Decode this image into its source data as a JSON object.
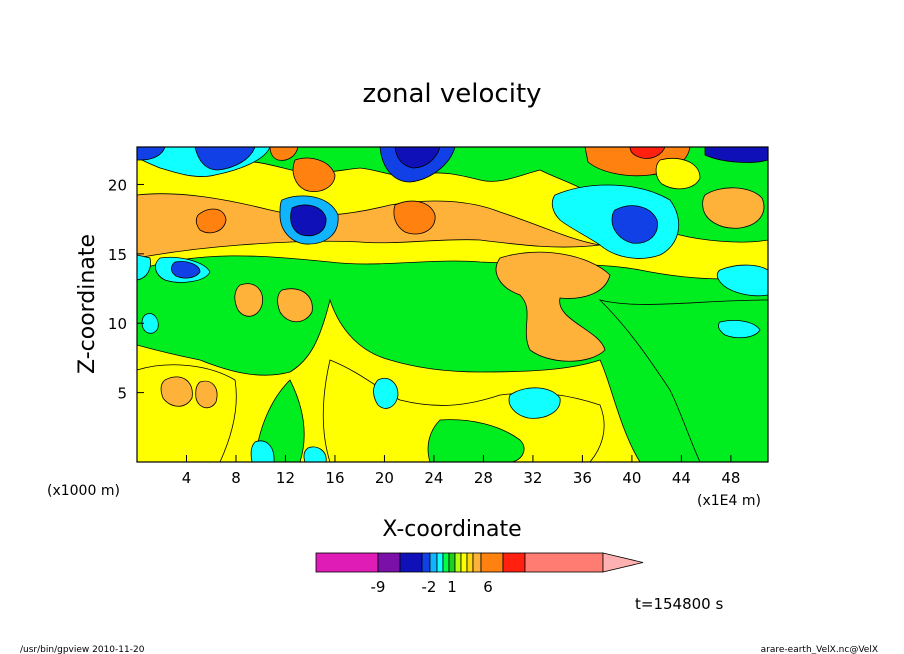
{
  "chart_data": {
    "type": "heatmap",
    "title": "zonal velocity",
    "xlabel": "X-coordinate",
    "ylabel": "Z-coordinate",
    "x_units_left": "(x1000 m)",
    "x_units_right": "(x1E4 m)",
    "xlim": [
      0,
      51
    ],
    "ylim": [
      0,
      22.7
    ],
    "x_ticks": [
      4,
      8,
      12,
      16,
      20,
      24,
      28,
      32,
      36,
      40,
      44,
      48
    ],
    "y_ticks": [
      5,
      10,
      15,
      20
    ],
    "colorbar": {
      "tick_labels": [
        "-9",
        "-2",
        "1",
        "6"
      ],
      "colors": [
        "#e01cb6",
        "#7a10a8",
        "#1010b8",
        "#1040e6",
        "#10b4ff",
        "#10ffff",
        "#00ff40",
        "#20d020",
        "#b8ff10",
        "#ffff00",
        "#ffd710",
        "#ffb23a",
        "#ff8210",
        "#ff2010",
        "#ff7c72",
        "#ffb0b0"
      ]
    },
    "time_label": "t=154800 s",
    "footer_left": "/usr/bin/gpview   2010-11-20",
    "footer_right": "arare-earth_VelX.nc@VelX"
  }
}
